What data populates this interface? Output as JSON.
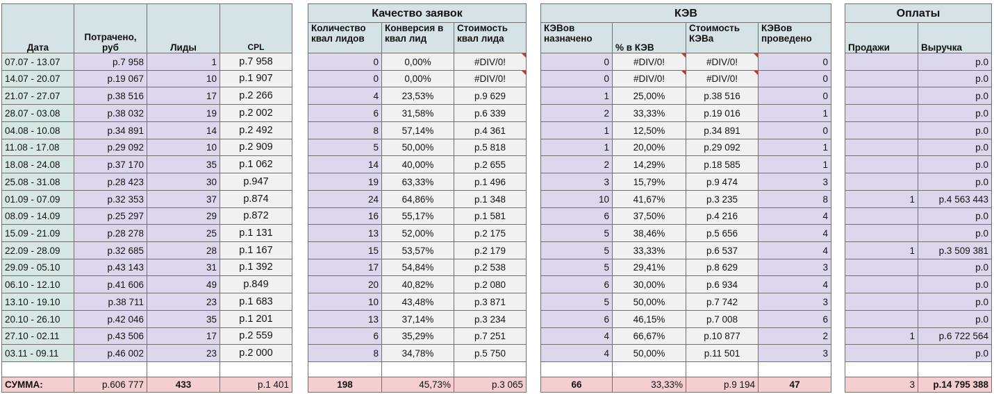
{
  "table": {
    "group_headers": [
      "Качество заявок",
      "КЭВ",
      "Оплаты"
    ],
    "columns": [
      "Дата",
      "Потрачено, руб",
      "Лиды",
      "CPL",
      "Количество квал лидов",
      "Конверсия в квал лид",
      "Стоимость квал лида",
      "КЭВов назначено",
      "% в КЭВ",
      "Стоимость КЭВа",
      "КЭВов проведено",
      "Продажи",
      "Выручка"
    ],
    "rows": [
      [
        "07.07 - 13.07",
        "р.7 958",
        "1",
        "р.7 958",
        "0",
        "0,00%",
        "#DIV/0!",
        "0",
        "#DIV/0!",
        "#DIV/0!",
        "0",
        null,
        "р.0"
      ],
      [
        "14.07 - 20.07",
        "р.19 067",
        "10",
        "р.1 907",
        "0",
        "0,00%",
        "#DIV/0!",
        "0",
        "#DIV/0!",
        "#DIV/0!",
        "0",
        null,
        "р.0"
      ],
      [
        "21.07 - 27.07",
        "р.38 516",
        "17",
        "р.2 266",
        "4",
        "23,53%",
        "р.9 629",
        "1",
        "25,00%",
        "р.38 516",
        "0",
        null,
        "р.0"
      ],
      [
        "28.07 - 03.08",
        "р.38 032",
        "19",
        "р.2 002",
        "6",
        "31,58%",
        "р.6 339",
        "2",
        "33,33%",
        "р.19 016",
        "1",
        null,
        "р.0"
      ],
      [
        "04.08 - 10.08",
        "р.34 891",
        "14",
        "р.2 492",
        "8",
        "57,14%",
        "р.4 361",
        "1",
        "12,50%",
        "р.34 891",
        "0",
        null,
        "р.0"
      ],
      [
        "11.08 - 17.08",
        "р.29 092",
        "10",
        "р.2 909",
        "5",
        "50,00%",
        "р.5 818",
        "1",
        "20,00%",
        "р.29 092",
        "1",
        null,
        "р.0"
      ],
      [
        "18.08 - 24.08",
        "р.37 170",
        "35",
        "р.1 062",
        "14",
        "40,00%",
        "р.2 655",
        "2",
        "14,29%",
        "р.18 585",
        "1",
        null,
        "р.0"
      ],
      [
        "25.08 - 31.08",
        "р.28 423",
        "30",
        "р.947",
        "19",
        "63,33%",
        "р.1 496",
        "3",
        "15,79%",
        "р.9 474",
        "3",
        null,
        "р.0"
      ],
      [
        "01.09 - 07.09",
        "р.32 353",
        "37",
        "р.874",
        "24",
        "64,86%",
        "р.1 348",
        "10",
        "41,67%",
        "р.3 235",
        "8",
        "1",
        "р.4 563 443"
      ],
      [
        "08.09 - 14.09",
        "р.25 297",
        "29",
        "р.872",
        "16",
        "55,17%",
        "р.1 581",
        "6",
        "37,50%",
        "р.4 216",
        "4",
        null,
        "р.0"
      ],
      [
        "15.09 - 21.09",
        "р.28 278",
        "25",
        "р.1 131",
        "13",
        "52,00%",
        "р.2 175",
        "5",
        "38,46%",
        "р.5 656",
        "4",
        null,
        "р.0"
      ],
      [
        "22.09 - 28.09",
        "р.32 685",
        "28",
        "р.1 167",
        "15",
        "53,57%",
        "р.2 179",
        "5",
        "33,33%",
        "р.6 537",
        "4",
        "1",
        "р.3 509 381"
      ],
      [
        "29.09 - 05.10",
        "р.43 143",
        "31",
        "р.1 392",
        "17",
        "54,84%",
        "р.2 538",
        "5",
        "29,41%",
        "р.8 629",
        "3",
        null,
        "р.0"
      ],
      [
        "06.10 - 12.10",
        "р.41 606",
        "49",
        "р.849",
        "20",
        "40,82%",
        "р.2 080",
        "6",
        "30,00%",
        "р.6 934",
        "4",
        null,
        "р.0"
      ],
      [
        "13.10 - 19.10",
        "р.38 711",
        "23",
        "р.1 683",
        "10",
        "43,48%",
        "р.3 871",
        "5",
        "50,00%",
        "р.7 742",
        "3",
        null,
        "р.0"
      ],
      [
        "20.10 - 26.10",
        "р.42 046",
        "35",
        "р.1 201",
        "13",
        "37,14%",
        "р.3 234",
        "6",
        "46,15%",
        "р.7 008",
        "6",
        null,
        "р.0"
      ],
      [
        "27.10 - 02.11",
        "р.43 506",
        "17",
        "р.2 559",
        "6",
        "35,29%",
        "р.7 251",
        "4",
        "66,67%",
        "р.10 877",
        "2",
        "1",
        "р.6 722 564"
      ],
      [
        "03.11 - 09.11",
        "р.46 002",
        "23",
        "р.2 000",
        "8",
        "34,78%",
        "р.5 750",
        "4",
        "50,00%",
        "р.11 501",
        "3",
        null,
        "р.0"
      ]
    ],
    "total": [
      "СУММА:",
      "р.606 777",
      "433",
      "р.1 401",
      "198",
      "45,73%",
      "р.3 065",
      "66",
      "33,33%",
      "р.9 194",
      "47",
      "3",
      "р.14 795 388"
    ]
  }
}
